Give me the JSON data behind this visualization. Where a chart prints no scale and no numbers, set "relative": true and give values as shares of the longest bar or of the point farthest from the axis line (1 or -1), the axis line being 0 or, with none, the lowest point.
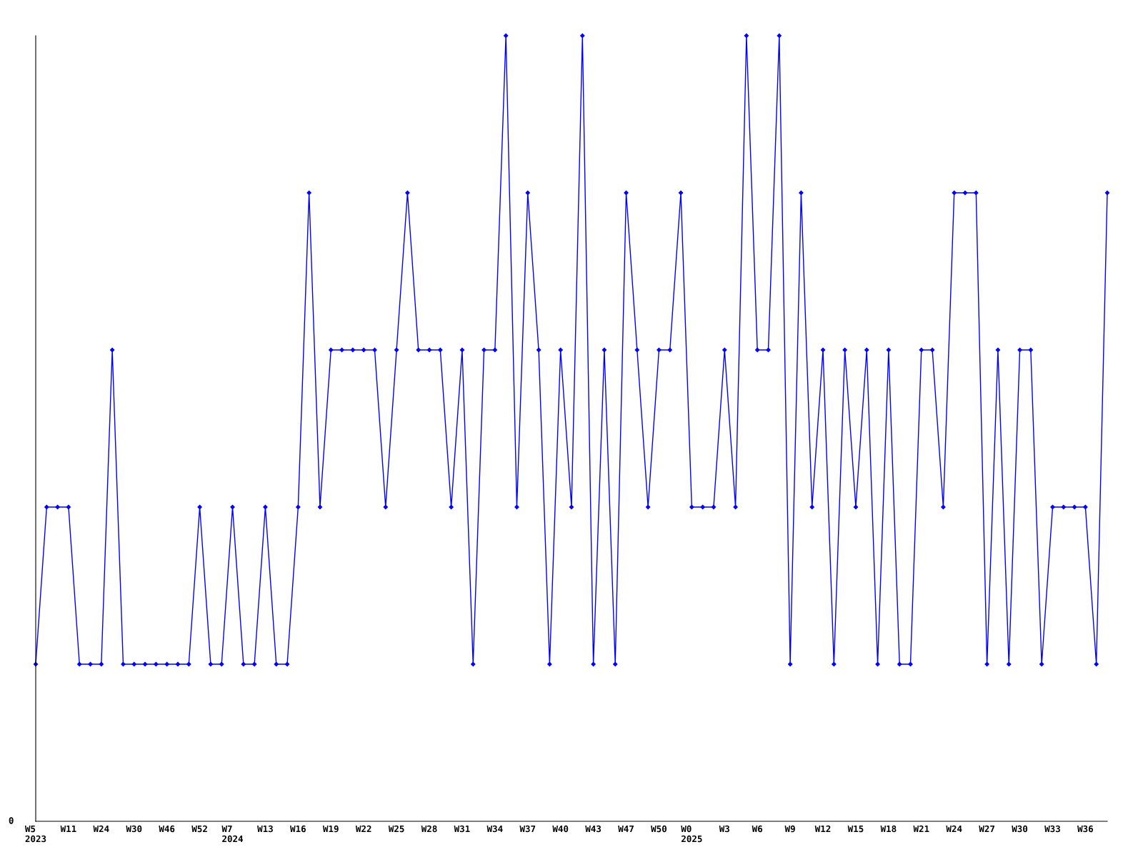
{
  "chart_data": {
    "type": "line",
    "relative": true,
    "marker": "diamond",
    "grid": false,
    "legend": false,
    "categories": [
      "W5\n2023",
      null,
      null,
      "W11",
      null,
      null,
      "W24",
      null,
      null,
      "W30",
      null,
      null,
      "W46",
      null,
      null,
      "W52",
      null,
      null,
      "W7\n2024",
      null,
      null,
      "W13",
      null,
      null,
      "W16",
      null,
      null,
      "W19",
      null,
      null,
      "W22",
      null,
      null,
      "W25",
      null,
      null,
      "W28",
      null,
      null,
      "W31",
      null,
      null,
      "W34",
      null,
      null,
      "W37",
      null,
      null,
      "W40",
      null,
      null,
      "W43",
      null,
      null,
      "W47",
      null,
      null,
      "W50",
      null,
      null,
      "W0\n2025",
      null,
      null,
      "W3",
      null,
      null,
      "W6",
      null,
      null,
      "W9",
      null,
      null,
      "W12",
      null,
      null,
      "W15",
      null,
      null,
      "W18",
      null,
      null,
      "W21",
      null,
      null,
      "W24",
      null,
      null,
      "W27",
      null,
      null,
      "W30",
      null,
      null,
      "W33",
      null,
      null,
      "W36",
      null,
      null
    ],
    "series": [
      {
        "color": "#0000ff",
        "values": [
          0.2,
          0.4,
          0.4,
          0.4,
          0.2,
          0.2,
          0.2,
          0.6,
          0.2,
          0.2,
          0.2,
          0.2,
          0.2,
          0.2,
          0.2,
          0.4,
          0.2,
          0.2,
          0.4,
          0.2,
          0.2,
          0.4,
          0.2,
          0.2,
          0.4,
          0.8,
          0.4,
          0.6,
          0.6,
          0.6,
          0.6,
          0.6,
          0.4,
          0.6,
          0.8,
          0.6,
          0.6,
          0.6,
          0.4,
          0.6,
          0.2,
          0.6,
          0.6,
          1,
          0.4,
          0.8,
          0.6,
          0.2,
          0.6,
          0.4,
          1,
          0.2,
          0.6,
          0.2,
          0.8,
          0.6,
          0.4,
          0.6,
          0.6,
          0.8,
          0.4,
          0.4,
          0.4,
          0.6,
          0.4,
          1,
          0.6,
          0.6,
          1,
          0.2,
          0.8,
          0.4,
          0.6,
          0.2,
          0.6,
          0.4,
          0.6,
          0.2,
          0.6,
          0.2,
          0.2,
          0.6,
          0.6,
          0.4,
          0.8,
          0.8,
          0.8,
          0.2,
          0.6,
          0.2,
          0.6,
          0.6,
          0.2,
          0.4,
          0.4,
          0.4,
          0.4,
          0.2,
          0.8
        ]
      }
    ],
    "annotations": [
      "0"
    ]
  }
}
